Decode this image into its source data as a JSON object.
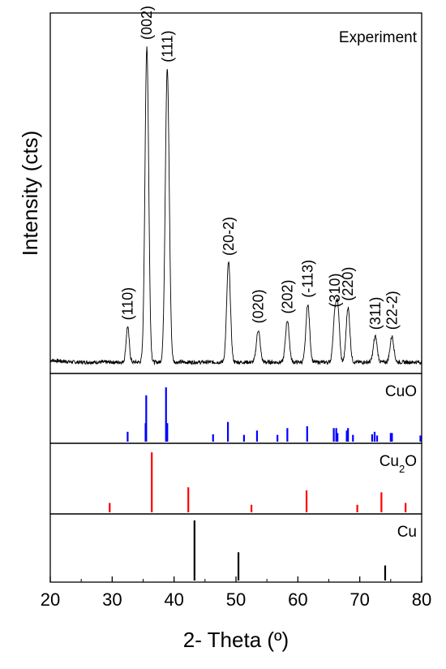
{
  "chart_data": {
    "type": "line",
    "xlabel": "2- Theta (º)",
    "ylabel": "Intensity (cts)",
    "xlim": [
      20,
      80
    ],
    "x_ticks": [
      "20",
      "30",
      "40",
      "50",
      "60",
      "70",
      "80"
    ],
    "grid": false,
    "panels": [
      {
        "label": "Experiment",
        "kind": "pattern",
        "ylim": [
          0,
          100
        ],
        "baseline": 3,
        "peaks": [
          {
            "x": 32.5,
            "y": 11,
            "width": 0.25,
            "label": "(110)"
          },
          {
            "x": 35.6,
            "y": 98,
            "width": 0.3,
            "label": "(002)"
          },
          {
            "x": 38.9,
            "y": 91,
            "width": 0.32,
            "label": "(111)"
          },
          {
            "x": 48.8,
            "y": 31,
            "width": 0.3,
            "label": "(20-2)"
          },
          {
            "x": 53.6,
            "y": 10,
            "width": 0.3,
            "label": "(020)"
          },
          {
            "x": 58.3,
            "y": 13,
            "width": 0.3,
            "label": "(202)"
          },
          {
            "x": 61.6,
            "y": 18,
            "width": 0.3,
            "label": "(-113)"
          },
          {
            "x": 66.0,
            "y": 15,
            "width": 0.3,
            "label": "(310)"
          },
          {
            "x": 66.5,
            "y": 14,
            "width": 0.25,
            "label": ""
          },
          {
            "x": 68.1,
            "y": 17,
            "width": 0.3,
            "label": "(220)"
          },
          {
            "x": 72.5,
            "y": 8,
            "width": 0.3,
            "label": "(311)"
          },
          {
            "x": 75.2,
            "y": 8,
            "width": 0.3,
            "label": "(22-2)"
          }
        ],
        "color": "#000000"
      },
      {
        "label": "CuO",
        "kind": "sticks",
        "ylim": [
          0,
          100
        ],
        "color": "#0000ff",
        "sticks": [
          {
            "x": 32.5,
            "y": 16
          },
          {
            "x": 35.4,
            "y": 30
          },
          {
            "x": 35.5,
            "y": 75
          },
          {
            "x": 38.7,
            "y": 88
          },
          {
            "x": 38.9,
            "y": 30
          },
          {
            "x": 46.3,
            "y": 12
          },
          {
            "x": 48.7,
            "y": 32
          },
          {
            "x": 51.3,
            "y": 11
          },
          {
            "x": 53.4,
            "y": 18
          },
          {
            "x": 56.7,
            "y": 11
          },
          {
            "x": 58.3,
            "y": 22
          },
          {
            "x": 61.5,
            "y": 25
          },
          {
            "x": 65.8,
            "y": 22
          },
          {
            "x": 66.2,
            "y": 22
          },
          {
            "x": 66.4,
            "y": 14
          },
          {
            "x": 67.9,
            "y": 18
          },
          {
            "x": 68.1,
            "y": 22
          },
          {
            "x": 68.9,
            "y": 11
          },
          {
            "x": 72.0,
            "y": 12
          },
          {
            "x": 72.4,
            "y": 16
          },
          {
            "x": 72.8,
            "y": 10
          },
          {
            "x": 75.0,
            "y": 14
          },
          {
            "x": 75.2,
            "y": 14
          },
          {
            "x": 79.8,
            "y": 10
          }
        ]
      },
      {
        "label": "Cu2O",
        "label_base": "Cu",
        "label_sub": "2",
        "label_tail": "O",
        "kind": "sticks",
        "ylim": [
          0,
          100
        ],
        "color": "#ff0000",
        "sticks": [
          {
            "x": 29.6,
            "y": 15
          },
          {
            "x": 36.4,
            "y": 96
          },
          {
            "x": 42.3,
            "y": 40
          },
          {
            "x": 52.5,
            "y": 12
          },
          {
            "x": 61.4,
            "y": 35
          },
          {
            "x": 69.6,
            "y": 12
          },
          {
            "x": 73.5,
            "y": 32
          },
          {
            "x": 77.4,
            "y": 15
          }
        ]
      },
      {
        "label": "Cu",
        "kind": "sticks",
        "ylim": [
          0,
          100
        ],
        "color": "#000000",
        "sticks": [
          {
            "x": 43.3,
            "y": 100
          },
          {
            "x": 50.4,
            "y": 47
          },
          {
            "x": 74.1,
            "y": 25
          }
        ]
      }
    ]
  }
}
